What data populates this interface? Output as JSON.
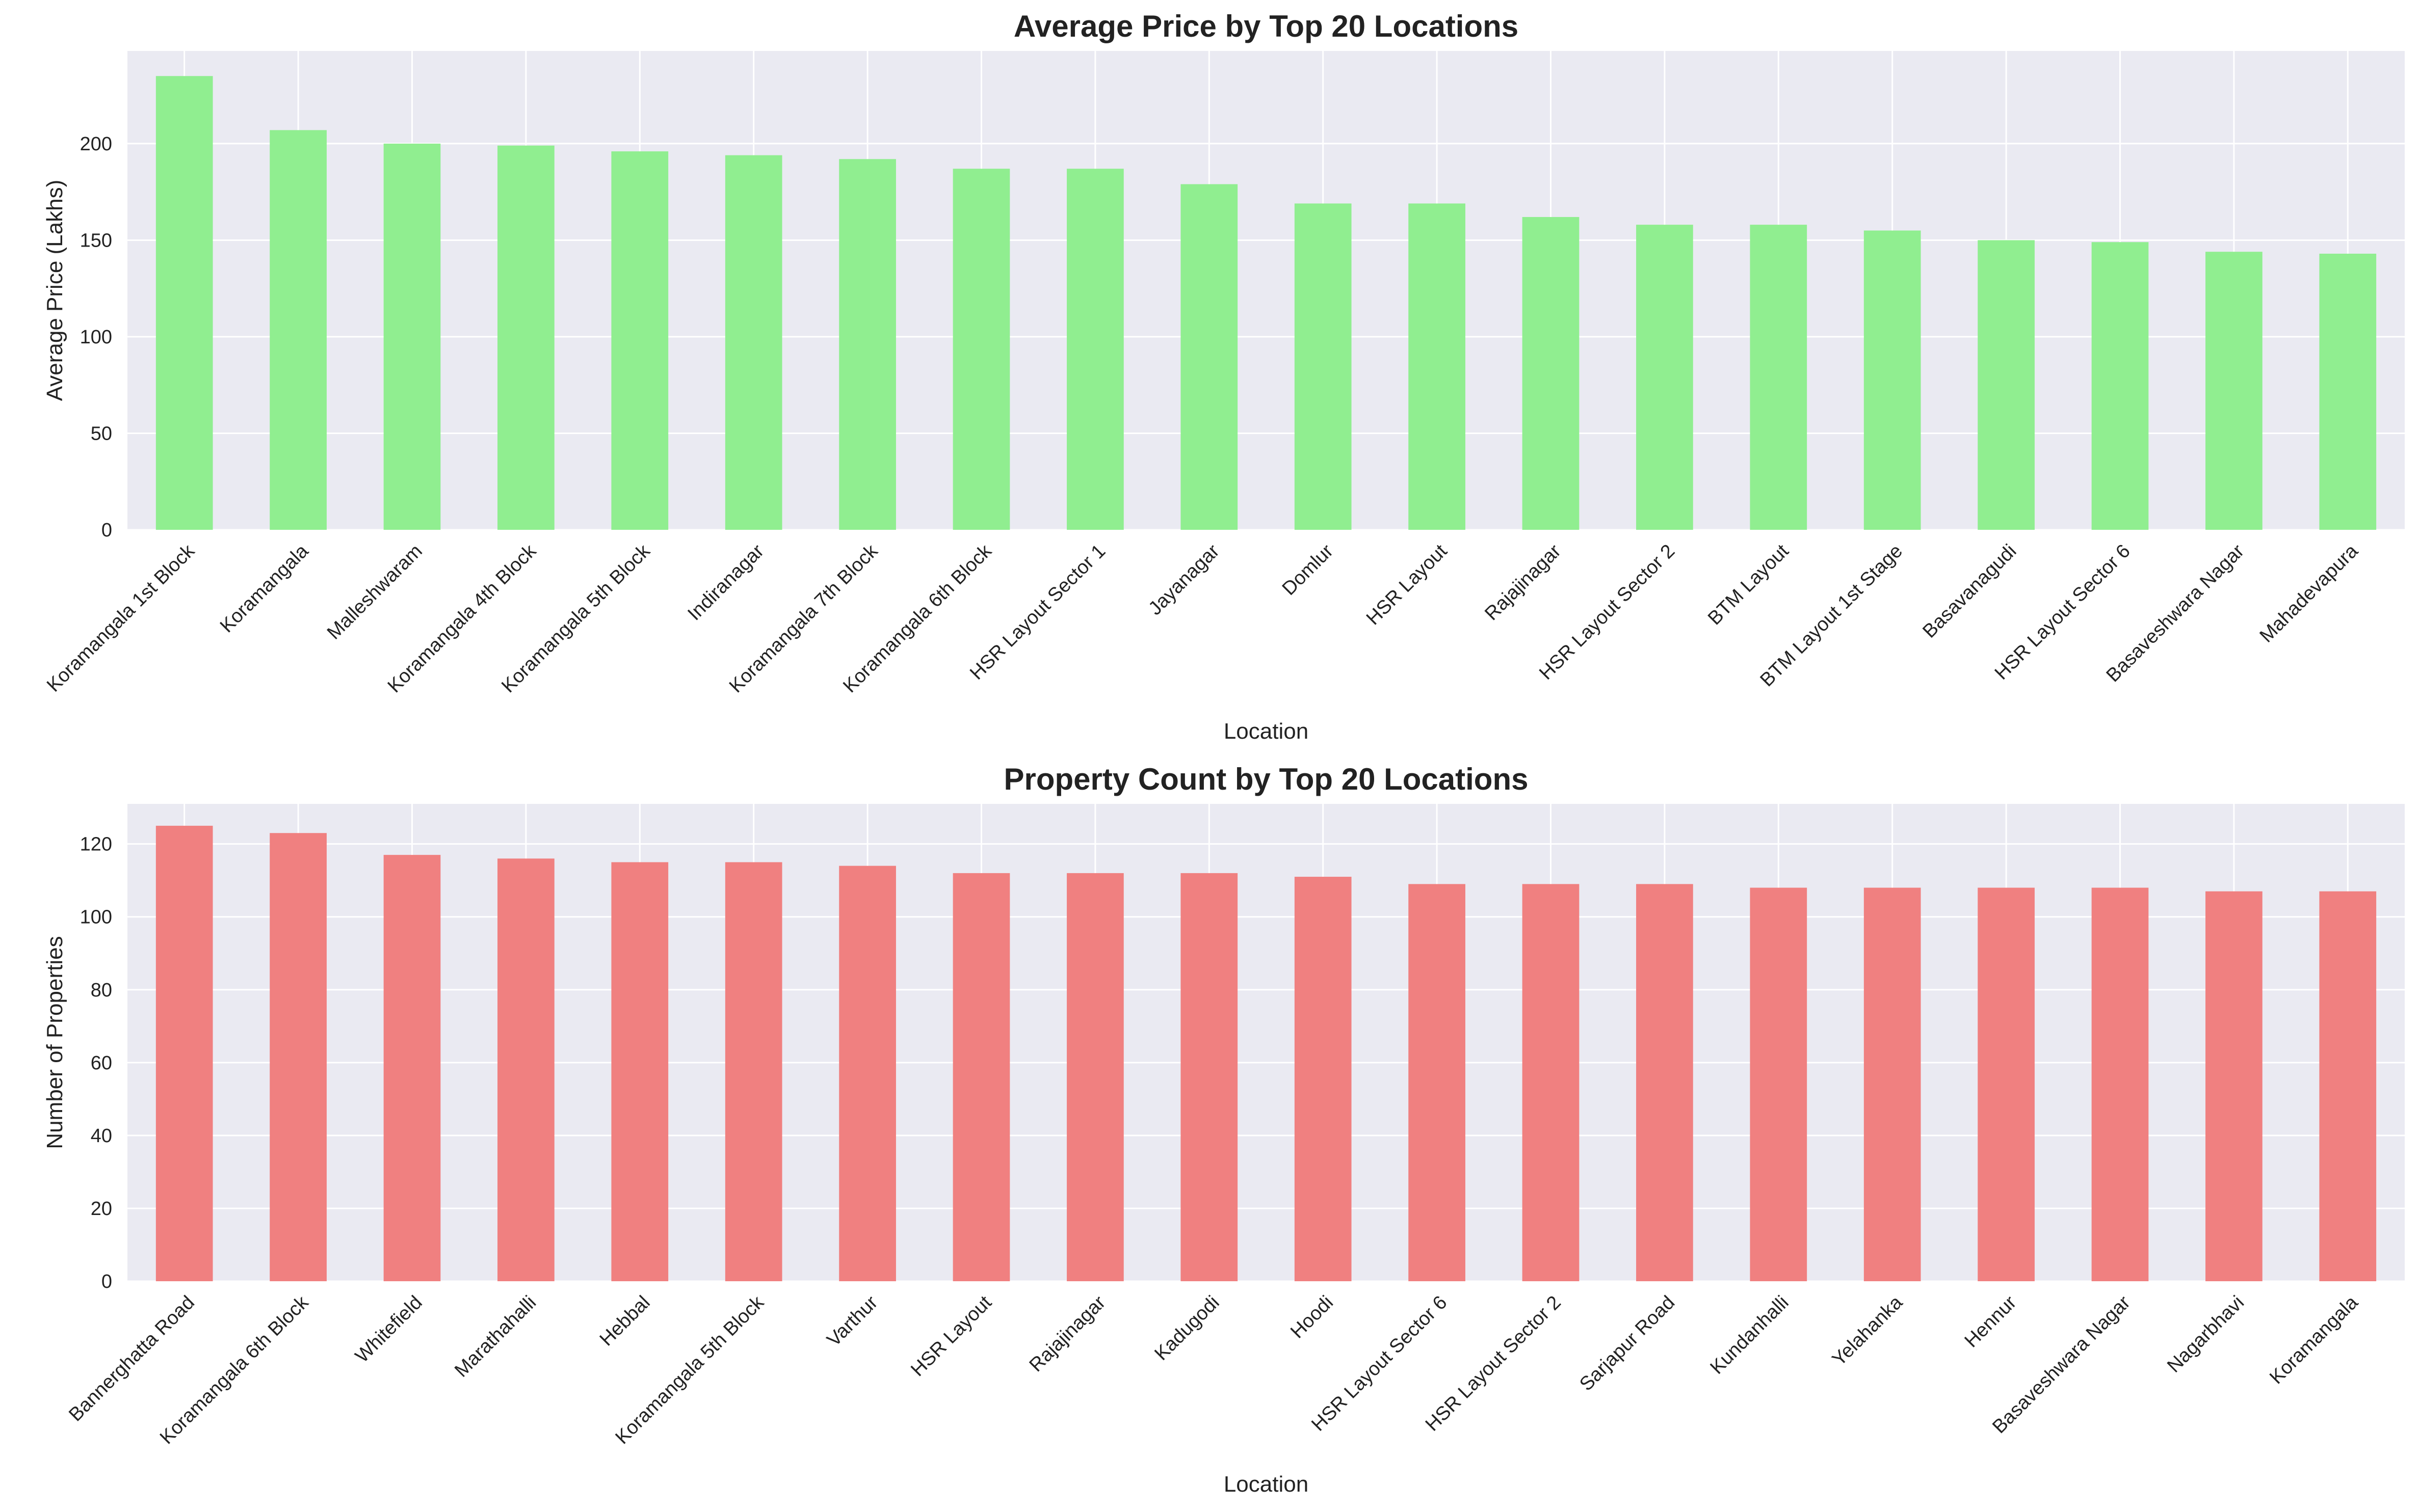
{
  "chart_data": [
    {
      "type": "bar",
      "title": "Average Price by Top 20 Locations",
      "xlabel": "Location",
      "ylabel": "Average Price (Lakhs)",
      "ylim": [
        0,
        248
      ],
      "yticks": [
        0,
        50,
        100,
        150,
        200
      ],
      "grid": true,
      "color": "#90ee90",
      "categories": [
        "Koramangala 1st Block",
        "Koramangala",
        "Malleshwaram",
        "Koramangala 4th Block",
        "Koramangala 5th Block",
        "Indiranagar",
        "Koramangala 7th Block",
        "Koramangala 6th Block",
        "HSR Layout Sector 1",
        "Jayanagar",
        "Domlur",
        "HSR Layout",
        "Rajajinagar",
        "HSR Layout Sector 2",
        "BTM Layout",
        "BTM Layout 1st Stage",
        "Basavanagudi",
        "HSR Layout Sector 6",
        "Basaveshwara Nagar",
        "Mahadevapura"
      ],
      "values": [
        235,
        207,
        200,
        199,
        196,
        194,
        192,
        187,
        187,
        179,
        169,
        169,
        162,
        158,
        158,
        155,
        150,
        149,
        144,
        143
      ]
    },
    {
      "type": "bar",
      "title": "Property Count by Top 20 Locations",
      "xlabel": "Location",
      "ylabel": "Number of Properties",
      "ylim": [
        0,
        131
      ],
      "yticks": [
        0,
        20,
        40,
        60,
        80,
        100,
        120
      ],
      "grid": true,
      "color": "#f08080",
      "categories": [
        "Bannerghatta Road",
        "Koramangala 6th Block",
        "Whitefield",
        "Marathahalli",
        "Hebbal",
        "Koramangala 5th Block",
        "Varthur",
        "HSR Layout",
        "Rajajinagar",
        "Kadugodi",
        "Hoodi",
        "HSR Layout Sector 6",
        "HSR Layout Sector 2",
        "Sarjapur Road",
        "Kundanhalli",
        "Yelahanka",
        "Hennur",
        "Basaveshwara Nagar",
        "Nagarbhavi",
        "Koramangala"
      ],
      "values": [
        125,
        123,
        117,
        116,
        115,
        115,
        114,
        112,
        112,
        112,
        111,
        109,
        109,
        109,
        108,
        108,
        108,
        108,
        107,
        107
      ]
    }
  ]
}
